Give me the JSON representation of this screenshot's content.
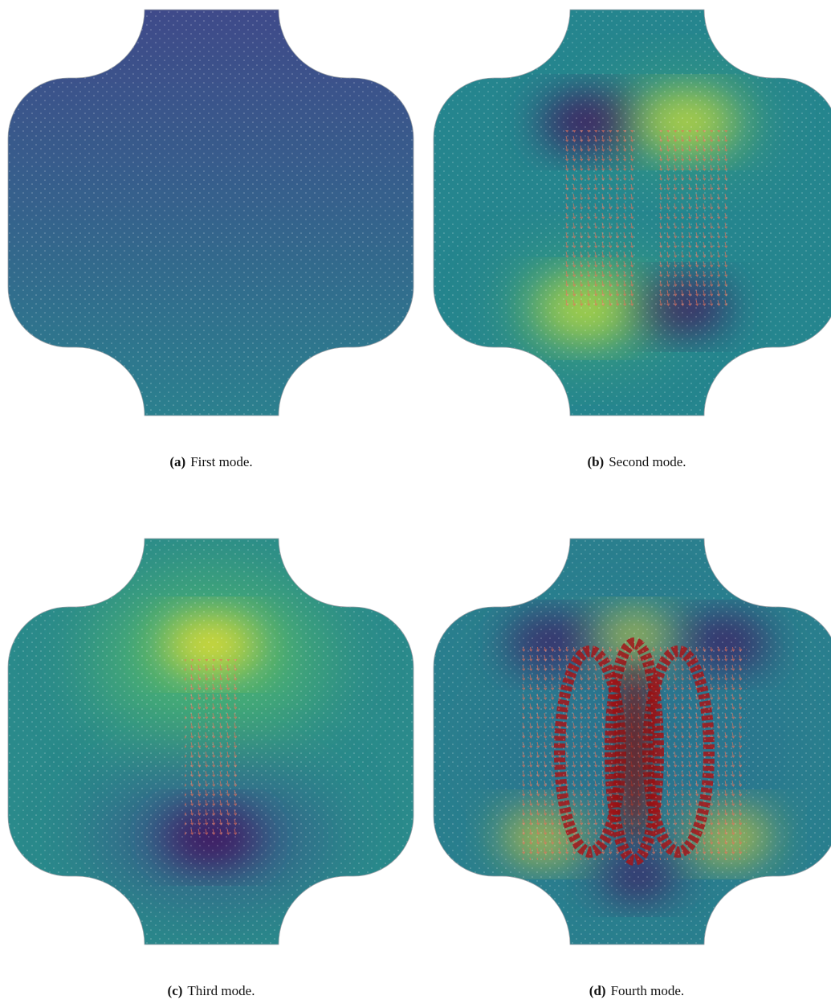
{
  "panels": [
    {
      "label": "(a)",
      "caption": "First mode."
    },
    {
      "label": "(b)",
      "caption": "Second mode."
    },
    {
      "label": "(c)",
      "caption": "Third mode."
    },
    {
      "label": "(d)",
      "caption": "Fourth mode."
    }
  ]
}
